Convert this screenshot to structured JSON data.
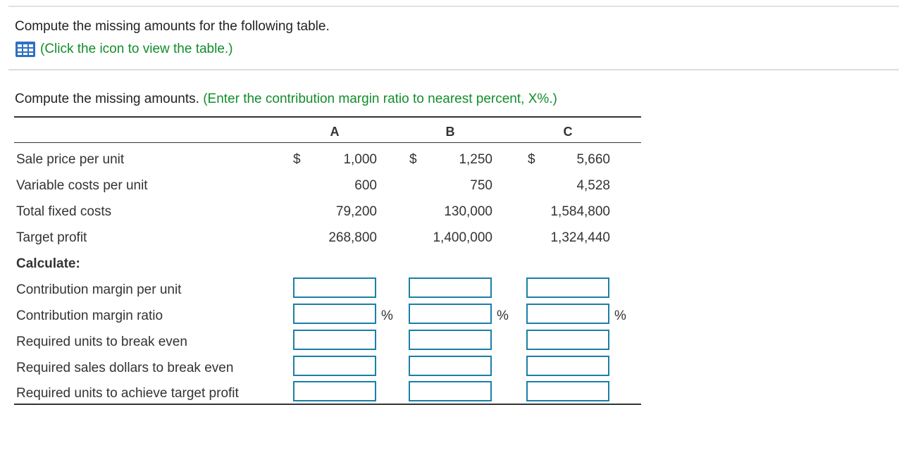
{
  "intro": {
    "text": "Compute the missing amounts for the following table.",
    "link_text": "(Click the icon to view the table.)",
    "icon": "table-grid-icon"
  },
  "instruction": {
    "text": "Compute the missing amounts.",
    "hint": "(Enter the contribution margin ratio to nearest percent, X%.)"
  },
  "table": {
    "columns": [
      "A",
      "B",
      "C"
    ],
    "currency_symbol": "$",
    "rows": [
      {
        "label": "Sale price per unit",
        "values": [
          "1,000",
          "1,250",
          "5,660"
        ]
      },
      {
        "label": "Variable costs per unit",
        "values": [
          "600",
          "750",
          "4,528"
        ]
      },
      {
        "label": "Total fixed costs",
        "values": [
          "79,200",
          "130,000",
          "1,584,800"
        ]
      },
      {
        "label": "Target profit",
        "values": [
          "268,800",
          "1,400,000",
          "1,324,440"
        ]
      }
    ],
    "calculate_label": "Calculate:",
    "input_rows": [
      {
        "label": "Contribution margin per unit",
        "values": [
          "",
          "",
          ""
        ],
        "suffix": ""
      },
      {
        "label": "Contribution margin ratio",
        "values": [
          "",
          "",
          ""
        ],
        "suffix": "%"
      },
      {
        "label": "Required units to break even",
        "values": [
          "",
          "",
          ""
        ],
        "suffix": ""
      },
      {
        "label": "Required sales dollars to break even",
        "values": [
          "",
          "",
          ""
        ],
        "suffix": ""
      },
      {
        "label": "Required units to achieve target profit",
        "values": [
          "",
          "",
          ""
        ],
        "suffix": ""
      }
    ]
  },
  "colors": {
    "hint_green": "#138d2c",
    "input_border": "#1b7fa6",
    "icon_blue": "#2f6fc4"
  }
}
